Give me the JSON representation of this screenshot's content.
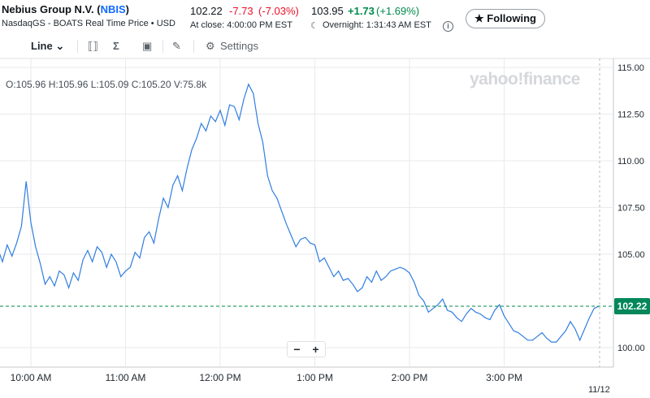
{
  "header": {
    "company_name": "Nebius Group N.V.",
    "symbol": "NBIS",
    "exchange_line": "NasdaqGS - BOATS Real Time Price • USD",
    "price": "102.22",
    "change": "-7.73",
    "change_pct": "(-7.03%)",
    "close_label": "At close: 4:00:00 PM EST",
    "after_hours_price": "103.95",
    "after_hours_change": "+1.73",
    "after_hours_pct": "(+1.69%)",
    "overnight_label": "Overnight: 1:31:43 AM EST",
    "follow_label": "★ Following"
  },
  "toolbar": {
    "chart_type": "Line ⌄",
    "indicator_glyph": "⟦⟧",
    "sigma_glyph": "Σ",
    "calendar_glyph": "▣",
    "draw_glyph": "✎",
    "settings_glyph": "⚙",
    "settings_label": "Settings"
  },
  "ohlc": "O:105.96  H:105.96  L:105.09  C:105.20  V:75.8k",
  "watermark": "yahoo!finance",
  "zoom": {
    "minus": "−",
    "plus": "+"
  },
  "date_label": "11/12",
  "colors": {
    "line": "#2f7de1",
    "up": "#008a4b",
    "down": "#eb0f29",
    "grid": "#e8eaed",
    "price_badge": "#00875a"
  },
  "chart_data": {
    "type": "line",
    "title": "",
    "xlabel": "",
    "ylabel": "",
    "ylim": [
      99.0,
      115.5
    ],
    "x_ticks": [
      "10:00 AM",
      "11:00 AM",
      "12:00 PM",
      "1:00 PM",
      "2:00 PM",
      "3:00 PM"
    ],
    "y_ticks": [
      "115.00",
      "112.50",
      "110.00",
      "107.50",
      "105.00",
      "102.22",
      "100.00"
    ],
    "current_price": 102.22,
    "grid": true,
    "series": [
      {
        "x_minutes_after_930": [
          0,
          3,
          6,
          9,
          12,
          15,
          18,
          21,
          24,
          27,
          30,
          33,
          36,
          39,
          42,
          45,
          48,
          51,
          54,
          57,
          60,
          63,
          66,
          69,
          72,
          75,
          78,
          81,
          84,
          87,
          90,
          93,
          96,
          99,
          102,
          105,
          108,
          111,
          114,
          117,
          120,
          123,
          126,
          129,
          132,
          135,
          138,
          141,
          144,
          147,
          150,
          153,
          156,
          159,
          162,
          165,
          168,
          171,
          174,
          177,
          180,
          183,
          186,
          189,
          192,
          195,
          198,
          201,
          204,
          207,
          210,
          213,
          216,
          219,
          222,
          225,
          228,
          231,
          234,
          237,
          240,
          243,
          246,
          249,
          252,
          255,
          258,
          261,
          264,
          267,
          270,
          273,
          276,
          279,
          282,
          285,
          288,
          291,
          294,
          297,
          300,
          303,
          306,
          309,
          312,
          315,
          318,
          321,
          324,
          327,
          330,
          333,
          336,
          339,
          342,
          345,
          348,
          351,
          354,
          357,
          360,
          363,
          366,
          369,
          372,
          375,
          378,
          381,
          384,
          387,
          390
        ],
        "y": [
          107.1,
          106.3,
          104.9,
          105.3,
          104.6,
          105.5,
          104.9,
          105.6,
          106.5,
          108.9,
          106.7,
          105.4,
          104.5,
          103.4,
          103.8,
          103.3,
          104.1,
          103.9,
          103.2,
          104.0,
          103.6,
          104.7,
          105.2,
          104.6,
          105.4,
          105.1,
          104.3,
          105.0,
          104.6,
          103.8,
          104.1,
          104.3,
          105.1,
          104.8,
          105.9,
          106.2,
          105.6,
          106.9,
          108.0,
          107.5,
          108.7,
          109.2,
          108.4,
          109.6,
          110.6,
          111.2,
          112.0,
          111.6,
          112.4,
          112.1,
          112.7,
          111.9,
          113.0,
          112.9,
          112.2,
          113.3,
          114.1,
          113.6,
          112.0,
          111.0,
          109.2,
          108.4,
          108.0,
          107.3,
          106.6,
          106.0,
          105.4,
          105.8,
          105.9,
          105.6,
          105.5,
          104.6,
          104.8,
          104.3,
          103.8,
          104.1,
          103.6,
          103.7,
          103.4,
          103.0,
          103.2,
          103.8,
          103.5,
          104.1,
          103.6,
          103.8,
          104.1,
          104.2,
          104.3,
          104.2,
          104.0,
          103.5,
          102.8,
          102.5,
          101.9,
          102.1,
          102.3,
          102.6,
          102.0,
          101.9,
          101.6,
          101.4,
          101.8,
          102.1,
          101.9,
          101.8,
          101.6,
          101.5,
          102.0,
          102.3,
          101.7,
          101.3,
          100.9,
          100.8,
          100.6,
          100.4,
          100.4,
          100.6,
          100.8,
          100.5,
          100.3,
          100.3,
          100.6,
          100.9,
          101.4,
          101.0,
          100.4,
          101.0,
          101.6,
          102.1,
          102.22
        ]
      }
    ]
  }
}
